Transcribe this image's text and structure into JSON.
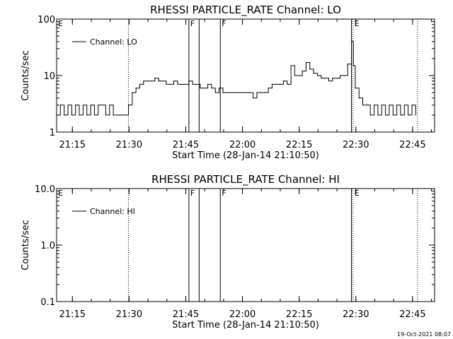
{
  "chart_data": [
    {
      "type": "line",
      "title": "RHESSI PARTICLE_RATE Channel: LO",
      "xlabel": "Start Time (28-Jan-14 21:10:50)",
      "ylabel": "Counts/sec",
      "yscale": "log",
      "ylim": [
        1,
        100
      ],
      "xlim_minutes_after_start": [
        0,
        100
      ],
      "y_tick_labels": [
        "1",
        "10",
        "100"
      ],
      "y_tick_values": [
        1,
        10,
        100
      ],
      "x_tick_labels": [
        "21:15",
        "21:30",
        "21:45",
        "22:00",
        "22:15",
        "22:30",
        "22:45"
      ],
      "x_tick_minutes": [
        4.17,
        19.17,
        34.17,
        49.17,
        64.17,
        79.17,
        94.17
      ],
      "legend": {
        "location": "top-left",
        "entries": [
          "Channel: LO"
        ]
      },
      "markers": [
        {
          "label": "E",
          "minute": 0,
          "style": "none"
        },
        {
          "label": "",
          "minute": 19.0,
          "style": "dotted"
        },
        {
          "label": "F",
          "minute": 35.0,
          "style": "solid"
        },
        {
          "label": "",
          "minute": 37.7,
          "style": "solid"
        },
        {
          "label": "F",
          "minute": 43.3,
          "style": "solid"
        },
        {
          "label": "",
          "minute": 78.0,
          "style": "solid"
        },
        {
          "label": "E",
          "minute": 78.4,
          "style": "dotted"
        },
        {
          "label": "",
          "minute": 95.5,
          "style": "dotted"
        }
      ],
      "series": [
        {
          "name": "Channel: LO",
          "x": [
            0,
            1,
            2,
            3,
            4,
            5,
            6,
            7,
            8,
            9,
            10,
            11,
            12,
            13,
            14,
            15,
            16,
            17,
            18,
            19,
            20,
            21,
            22,
            23,
            24,
            25,
            26,
            27,
            28,
            29,
            30,
            31,
            32,
            33,
            34,
            35,
            36,
            37,
            38,
            39,
            40,
            41,
            42,
            43,
            44,
            45,
            46,
            47,
            48,
            49,
            50,
            51,
            52,
            53,
            54,
            55,
            56,
            57,
            58,
            59,
            60,
            61,
            62,
            63,
            64,
            65,
            66,
            67,
            68,
            69,
            70,
            71,
            72,
            73,
            74,
            75,
            76,
            77,
            78,
            78.5,
            79,
            80,
            81,
            82,
            83,
            84,
            85,
            86,
            87,
            88,
            89,
            90,
            91,
            92,
            93,
            94,
            95
          ],
          "y": [
            2,
            3,
            2,
            3,
            2,
            3,
            2,
            3,
            2,
            3,
            2,
            3,
            3,
            2,
            3,
            2,
            2,
            2,
            2,
            3,
            5,
            6,
            7,
            8,
            8,
            8,
            9,
            8,
            8,
            7,
            7,
            8,
            7,
            7,
            7,
            8,
            7,
            7,
            6,
            6,
            7,
            6,
            5,
            6,
            5,
            5,
            5,
            5,
            5,
            5,
            5,
            5,
            4,
            5,
            5,
            5,
            6,
            7,
            7,
            7,
            8,
            7,
            15,
            10,
            10,
            12,
            17,
            13,
            11,
            10,
            9,
            9,
            8,
            9,
            9,
            10,
            10,
            16,
            40,
            15,
            6,
            4,
            3,
            3,
            2,
            3,
            2,
            3,
            2,
            3,
            2,
            3,
            2,
            3,
            2,
            3,
            2
          ]
        }
      ]
    },
    {
      "type": "line",
      "title": "RHESSI PARTICLE_RATE Channel: HI",
      "xlabel": "Start Time (28-Jan-14 21:10:50)",
      "ylabel": "Counts/sec",
      "yscale": "log",
      "ylim": [
        0.1,
        10
      ],
      "xlim_minutes_after_start": [
        0,
        100
      ],
      "y_tick_labels": [
        "0.1",
        "1.0",
        "10.0"
      ],
      "y_tick_values": [
        0.1,
        1,
        10
      ],
      "x_tick_labels": [
        "21:15",
        "21:30",
        "21:45",
        "22:00",
        "22:15",
        "22:30",
        "22:45"
      ],
      "x_tick_minutes": [
        4.17,
        19.17,
        34.17,
        49.17,
        64.17,
        79.17,
        94.17
      ],
      "legend": {
        "location": "top-left",
        "entries": [
          "Channel: HI"
        ]
      },
      "markers": [
        {
          "label": "E",
          "minute": 0,
          "style": "none"
        },
        {
          "label": "",
          "minute": 19.0,
          "style": "dotted"
        },
        {
          "label": "F",
          "minute": 35.0,
          "style": "solid"
        },
        {
          "label": "",
          "minute": 37.7,
          "style": "solid"
        },
        {
          "label": "F",
          "minute": 43.3,
          "style": "solid"
        },
        {
          "label": "",
          "minute": 78.0,
          "style": "solid"
        },
        {
          "label": "E",
          "minute": 78.4,
          "style": "dotted"
        },
        {
          "label": "",
          "minute": 95.5,
          "style": "dotted"
        }
      ],
      "series": [
        {
          "name": "Channel: HI",
          "x": [],
          "y": []
        }
      ]
    }
  ],
  "footer": {
    "timestamp": "19-Oct-2021 08:07"
  }
}
